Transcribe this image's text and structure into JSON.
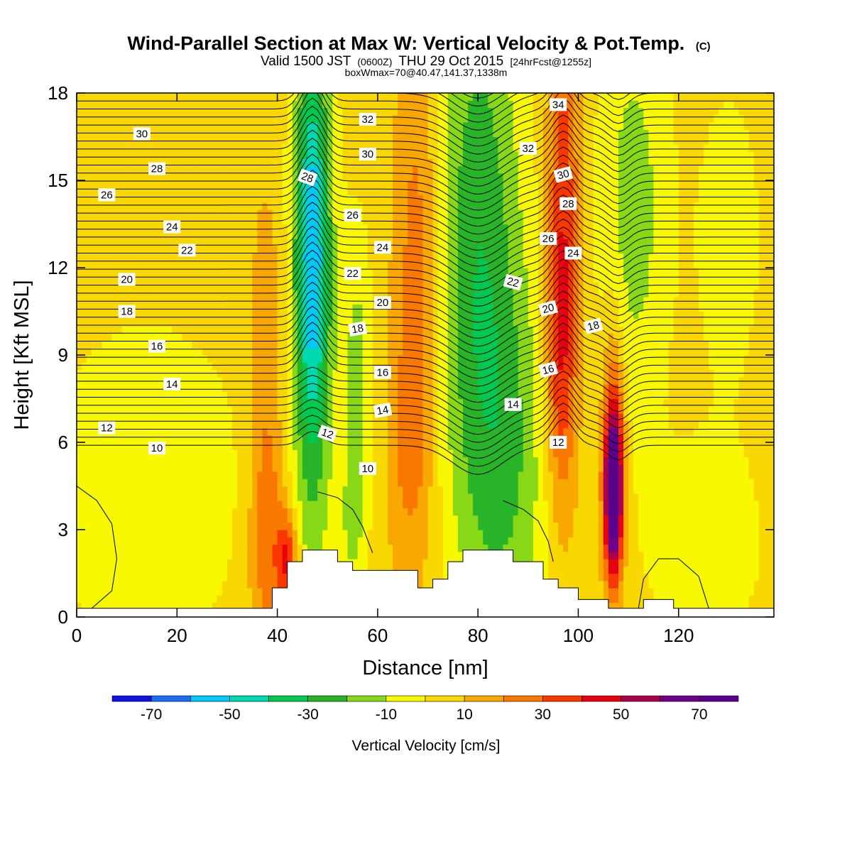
{
  "header": {
    "title": "Wind-Parallel Section at Max W: Vertical Velocity & Pot.Temp.",
    "title_mark": "(C)",
    "valid_a": "Valid 1500 JST",
    "valid_zulu": "(0600Z)",
    "valid_b": "THU 29 Oct 2015",
    "valid_fcst": "[24hrFcst@1255z]",
    "boxwmax": "boxWmax=70@40.47,141.37,1338m"
  },
  "chart_data": {
    "type": "heatmap",
    "xlabel": "Distance [nm]",
    "ylabel": "Height [Kft MSL]",
    "xlim": [
      0,
      139
    ],
    "ylim": [
      0,
      18
    ],
    "x_ticks": [
      0,
      20,
      40,
      60,
      80,
      100,
      120
    ],
    "y_ticks": [
      0,
      3,
      6,
      9,
      12,
      15,
      18
    ],
    "x_tick_labels": [
      "0",
      "20",
      "40",
      "60",
      "80",
      "100",
      "120"
    ],
    "y_tick_labels": [
      "0",
      "3",
      "6",
      "9",
      "12",
      "15",
      "18"
    ],
    "colorbar": {
      "title": "Vertical Velocity [cm/s]",
      "levels": [
        -80,
        -70,
        -60,
        -50,
        -40,
        -30,
        -20,
        -10,
        0,
        10,
        20,
        30,
        40,
        50,
        60,
        70,
        80
      ],
      "colors": [
        "#1010e0",
        "#1a6cf2",
        "#00c8f8",
        "#00d8b0",
        "#00c850",
        "#28b428",
        "#88d818",
        "#f8f800",
        "#f8d800",
        "#f8a800",
        "#f87800",
        "#f83800",
        "#e80010",
        "#a8004c",
        "#70008c",
        "#5a008c"
      ],
      "tick_values": [
        -70,
        -50,
        -30,
        -10,
        10,
        30,
        50,
        70
      ],
      "tick_labels": [
        "-70",
        "-50",
        "-30",
        "-10",
        "10",
        "30",
        "50",
        "70"
      ]
    },
    "background_level": 5,
    "vv_features": [
      {
        "x": 47,
        "y": 13.0,
        "sx": 2.3,
        "sy": 4.8,
        "amp": -48
      },
      {
        "x": 47,
        "y": 9.0,
        "sx": 3.5,
        "sy": 7.5,
        "amp": -20
      },
      {
        "x": 56,
        "y": 8.5,
        "sx": 2.0,
        "sy": 3.5,
        "amp": -18
      },
      {
        "x": 68,
        "y": 12.0,
        "sx": 3.2,
        "sy": 6.0,
        "amp": 22
      },
      {
        "x": 66,
        "y": 5.5,
        "sx": 3.0,
        "sy": 3.0,
        "amp": 12
      },
      {
        "x": 80,
        "y": 12.5,
        "sx": 6.0,
        "sy": 8.0,
        "amp": -32
      },
      {
        "x": 87,
        "y": 5.0,
        "sx": 6.0,
        "sy": 5.0,
        "amp": -18
      },
      {
        "x": 97,
        "y": 13.0,
        "sx": 2.2,
        "sy": 6.0,
        "amp": 35
      },
      {
        "x": 96,
        "y": 8.0,
        "sx": 2.2,
        "sy": 3.0,
        "amp": 15
      },
      {
        "x": 107,
        "y": 4.2,
        "sx": 1.3,
        "sy": 2.0,
        "amp": 80
      },
      {
        "x": 107,
        "y": 6.5,
        "sx": 1.5,
        "sy": 3.0,
        "amp": 25
      },
      {
        "x": 111,
        "y": 14.0,
        "sx": 5.0,
        "sy": 5.0,
        "amp": -20
      },
      {
        "x": 38,
        "y": 3.0,
        "sx": 2.5,
        "sy": 3.5,
        "amp": 25
      },
      {
        "x": 42,
        "y": 2.0,
        "sx": 1.5,
        "sy": 1.2,
        "amp": 35
      },
      {
        "x": 38,
        "y": 11.0,
        "sx": 2.5,
        "sy": 3.0,
        "amp": 10
      },
      {
        "x": 14,
        "y": 4.5,
        "sx": 14.0,
        "sy": 4.0,
        "amp": -13
      },
      {
        "x": 125,
        "y": 2.5,
        "sx": 8.0,
        "sy": 2.5,
        "amp": -13
      },
      {
        "x": 130,
        "y": 13.0,
        "sx": 5.0,
        "sy": 4.0,
        "amp": -10
      },
      {
        "x": 55,
        "y": 3.0,
        "sx": 2.0,
        "sy": 2.0,
        "amp": -13
      }
    ],
    "terrain": {
      "x": [
        0,
        39,
        39,
        42,
        42,
        45,
        45,
        52,
        52,
        55,
        55,
        68,
        68,
        71,
        71,
        74,
        74,
        77,
        77,
        87,
        87,
        93,
        93,
        96,
        96,
        100,
        100,
        106,
        106,
        113,
        113,
        119,
        119,
        139
      ],
      "y": [
        0.3,
        0.3,
        1.0,
        1.0,
        1.9,
        1.9,
        2.3,
        2.3,
        1.9,
        1.9,
        1.6,
        1.6,
        1.0,
        1.0,
        1.3,
        1.3,
        1.9,
        1.9,
        2.3,
        2.3,
        1.9,
        1.9,
        1.3,
        1.3,
        1.0,
        1.0,
        0.6,
        0.6,
        0.3,
        0.3,
        0.6,
        0.6,
        0.3,
        0.3
      ]
    },
    "theta": {
      "label_levels": [
        10,
        12,
        14,
        16,
        18,
        20,
        22,
        24,
        26,
        28,
        30,
        32,
        34
      ],
      "labels": [
        {
          "text": "30",
          "x": 13,
          "y": 16.6
        },
        {
          "text": "28",
          "x": 16,
          "y": 15.4
        },
        {
          "text": "26",
          "x": 6,
          "y": 14.5
        },
        {
          "text": "24",
          "x": 19,
          "y": 13.4
        },
        {
          "text": "22",
          "x": 22,
          "y": 12.6
        },
        {
          "text": "20",
          "x": 10,
          "y": 11.6
        },
        {
          "text": "18",
          "x": 10,
          "y": 10.5
        },
        {
          "text": "16",
          "x": 16,
          "y": 9.3
        },
        {
          "text": "14",
          "x": 19,
          "y": 8.0
        },
        {
          "text": "12",
          "x": 6,
          "y": 6.5
        },
        {
          "text": "10",
          "x": 16,
          "y": 5.8
        },
        {
          "text": "28",
          "x": 46,
          "y": 15.1,
          "rot": 20
        },
        {
          "text": "12",
          "x": 50,
          "y": 6.3,
          "rot": 20
        },
        {
          "text": "32",
          "x": 58,
          "y": 17.1
        },
        {
          "text": "30",
          "x": 58,
          "y": 15.9
        },
        {
          "text": "26",
          "x": 55,
          "y": 13.8
        },
        {
          "text": "24",
          "x": 61,
          "y": 12.7
        },
        {
          "text": "22",
          "x": 55,
          "y": 11.8
        },
        {
          "text": "20",
          "x": 61,
          "y": 10.8
        },
        {
          "text": "18",
          "x": 56,
          "y": 9.9,
          "rot": -10
        },
        {
          "text": "16",
          "x": 61,
          "y": 8.4
        },
        {
          "text": "14",
          "x": 61,
          "y": 7.1,
          "rot": -10
        },
        {
          "text": "10",
          "x": 58,
          "y": 5.1
        },
        {
          "text": "34",
          "x": 96,
          "y": 17.6
        },
        {
          "text": "32",
          "x": 90,
          "y": 16.1
        },
        {
          "text": "30",
          "x": 97,
          "y": 15.2,
          "rot": -15
        },
        {
          "text": "28",
          "x": 98,
          "y": 14.2
        },
        {
          "text": "26",
          "x": 94,
          "y": 13.0
        },
        {
          "text": "24",
          "x": 99,
          "y": 12.5
        },
        {
          "text": "22",
          "x": 87,
          "y": 11.5,
          "rot": 15
        },
        {
          "text": "20",
          "x": 94,
          "y": 10.6,
          "rot": -15
        },
        {
          "text": "18",
          "x": 103,
          "y": 10.0,
          "rot": -15
        },
        {
          "text": "16",
          "x": 94,
          "y": 8.5,
          "rot": -15
        },
        {
          "text": "14",
          "x": 87,
          "y": 7.3
        },
        {
          "text": "12",
          "x": 96,
          "y": 6.0
        }
      ]
    },
    "w_zero_contours": [
      {
        "points": [
          [
            0,
            4.5
          ],
          [
            4,
            4.0
          ],
          [
            7,
            3.2
          ],
          [
            8,
            2.0
          ],
          [
            7,
            0.9
          ],
          [
            3,
            0.3
          ]
        ]
      },
      {
        "points": [
          [
            112,
            0.3
          ],
          [
            113,
            1.3
          ],
          [
            116,
            2.0
          ],
          [
            120,
            2.0
          ],
          [
            124,
            1.4
          ],
          [
            126,
            0.3
          ]
        ]
      },
      {
        "points": [
          [
            85,
            4.0
          ],
          [
            89,
            3.7
          ],
          [
            92,
            3.3
          ],
          [
            94,
            2.6
          ],
          [
            95,
            1.9
          ]
        ]
      },
      {
        "points": [
          [
            48,
            4.3
          ],
          [
            52,
            4.1
          ],
          [
            55,
            3.7
          ],
          [
            57,
            3.1
          ],
          [
            59,
            2.2
          ]
        ]
      }
    ]
  }
}
